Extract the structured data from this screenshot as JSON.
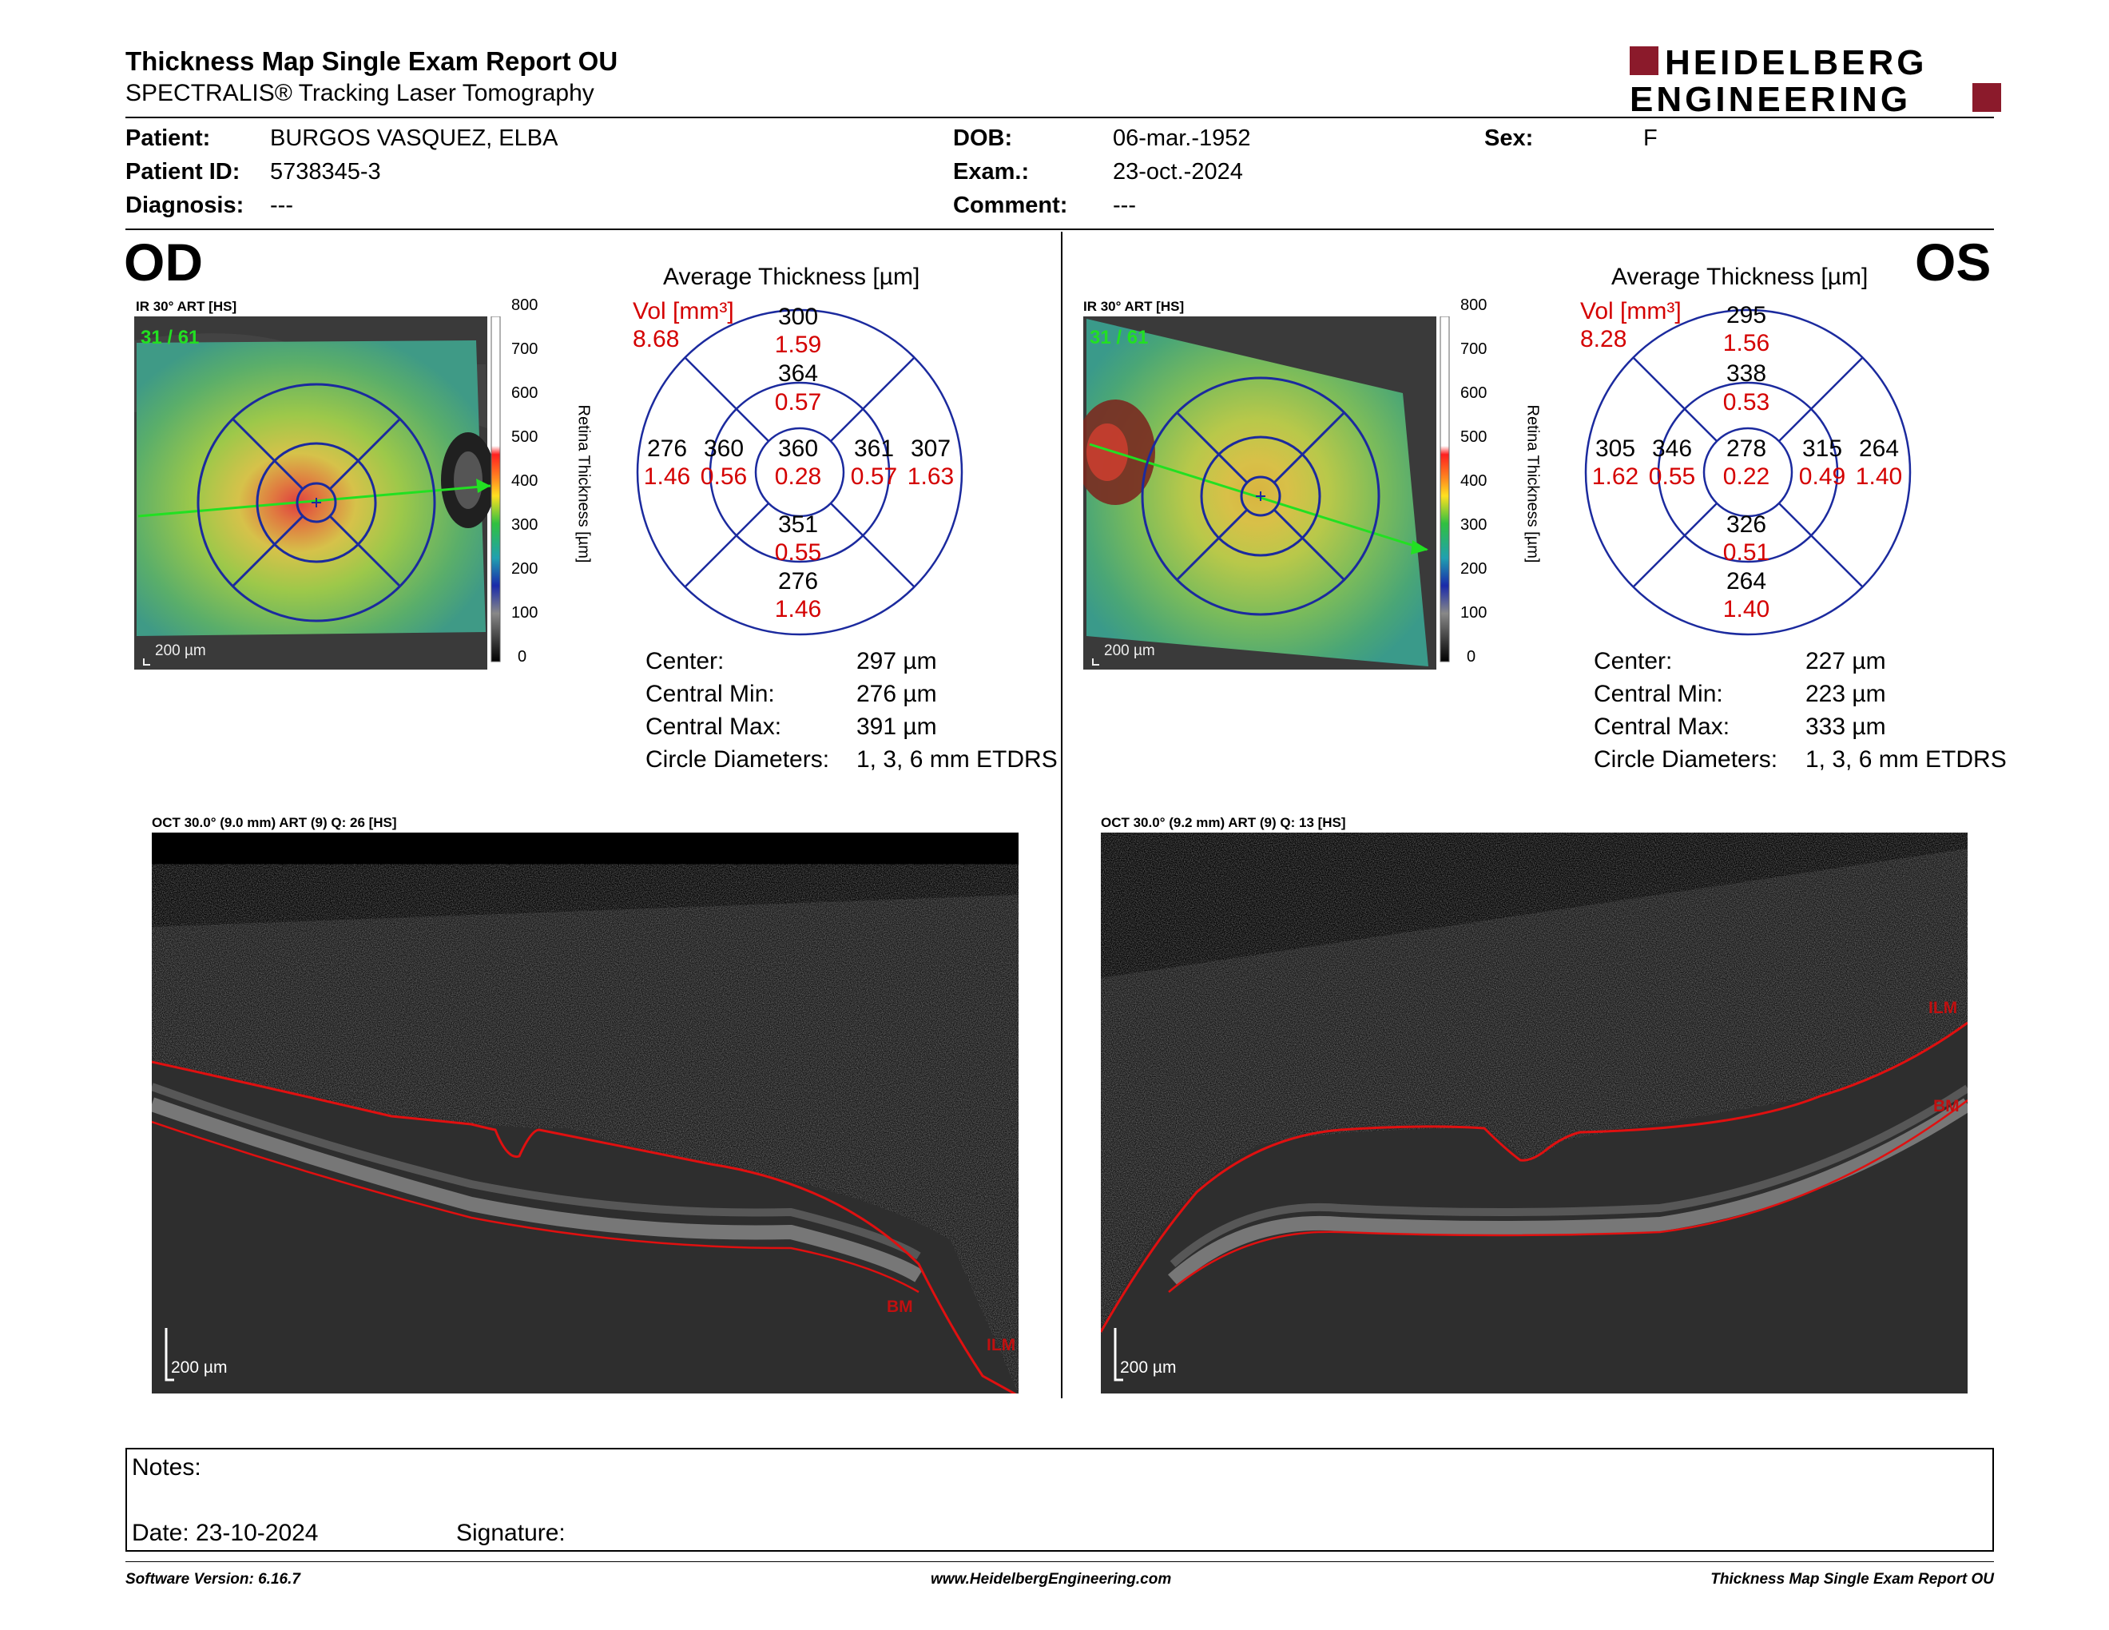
{
  "report": {
    "title": "Thickness Map Single Exam Report OU",
    "subtitle": "SPECTRALIS® Tracking Laser Tomography",
    "brand_line1": "HEIDELBERG",
    "brand_line2": "ENGINEERING",
    "brand_color": "#8b1a2b"
  },
  "patient": {
    "patient_label": "Patient:",
    "patient_value": "BURGOS VASQUEZ, ELBA",
    "id_label": "Patient ID:",
    "id_value": "5738345-3",
    "diag_label": "Diagnosis:",
    "diag_value": "---",
    "dob_label": "DOB:",
    "dob_value": "06-mar.-1952",
    "exam_label": "Exam.:",
    "exam_value": "23-oct.-2024",
    "comment_label": "Comment:",
    "comment_value": "---",
    "sex_label": "Sex:",
    "sex_value": "F"
  },
  "od": {
    "eye": "OD",
    "fundus_caption": "IR 30° ART [HS]",
    "frame": "31 / 61",
    "scale": "200 µm",
    "colorbar_ticks": [
      "800",
      "700",
      "600",
      "500",
      "400",
      "300",
      "200",
      "100",
      "0"
    ],
    "colorbar_label": "Retina Thickness [µm]",
    "avg_title": "Average Thickness [µm]",
    "vol_label": "Vol [mm³]",
    "vol_value": "8.68",
    "sectors": {
      "outer_top": {
        "t": "300",
        "v": "1.59"
      },
      "inner_top": {
        "t": "364",
        "v": "0.57"
      },
      "outer_left": {
        "t": "276",
        "v": "1.46"
      },
      "inner_left": {
        "t": "360",
        "v": "0.56"
      },
      "center": {
        "t": "360",
        "v": "0.28"
      },
      "inner_right": {
        "t": "361",
        "v": "0.57"
      },
      "outer_right": {
        "t": "307",
        "v": "1.63"
      },
      "inner_bottom": {
        "t": "351",
        "v": "0.55"
      },
      "outer_bottom": {
        "t": "276",
        "v": "1.46"
      }
    },
    "stats": {
      "center_label": "Center:",
      "center_value": "297 µm",
      "min_label": "Central Min:",
      "min_value": "276 µm",
      "max_label": "Central Max:",
      "max_value": "391 µm",
      "diam_label": "Circle Diameters:",
      "diam_value": "1, 3, 6 mm ETDRS"
    },
    "oct_caption": "OCT 30.0° (9.0 mm) ART (9) Q: 26 [HS]",
    "oct_scale": "200 µm",
    "oct_label_bm": "BM",
    "oct_label_ilm": "ILM"
  },
  "os": {
    "eye": "OS",
    "fundus_caption": "IR 30° ART [HS]",
    "frame": "31 / 61",
    "scale": "200 µm",
    "colorbar_ticks": [
      "800",
      "700",
      "600",
      "500",
      "400",
      "300",
      "200",
      "100",
      "0"
    ],
    "colorbar_label": "Retina Thickness [µm]",
    "avg_title": "Average Thickness [µm]",
    "vol_label": "Vol [mm³]",
    "vol_value": "8.28",
    "sectors": {
      "outer_top": {
        "t": "295",
        "v": "1.56"
      },
      "inner_top": {
        "t": "338",
        "v": "0.53"
      },
      "outer_left": {
        "t": "305",
        "v": "1.62"
      },
      "inner_left": {
        "t": "346",
        "v": "0.55"
      },
      "center": {
        "t": "278",
        "v": "0.22"
      },
      "inner_right": {
        "t": "315",
        "v": "0.49"
      },
      "outer_right": {
        "t": "264",
        "v": "1.40"
      },
      "inner_bottom": {
        "t": "326",
        "v": "0.51"
      },
      "outer_bottom": {
        "t": "264",
        "v": "1.40"
      }
    },
    "stats": {
      "center_label": "Center:",
      "center_value": "227 µm",
      "min_label": "Central Min:",
      "min_value": "223 µm",
      "max_label": "Central Max:",
      "max_value": "333 µm",
      "diam_label": "Circle Diameters:",
      "diam_value": "1, 3, 6 mm ETDRS"
    },
    "oct_caption": "OCT 30.0° (9.2 mm) ART (9) Q: 13 [HS]",
    "oct_scale": "200 µm",
    "oct_label_ilm": "ILM",
    "oct_label_bm": "BM"
  },
  "notes": {
    "notes_label": "Notes:",
    "date_label": "Date: 23-10-2024",
    "signature_label": "Signature:"
  },
  "footer": {
    "left": "Software Version: 6.16.7",
    "center": "www.HeidelbergEngineering.com",
    "right": "Thickness Map Single Exam Report OU"
  }
}
